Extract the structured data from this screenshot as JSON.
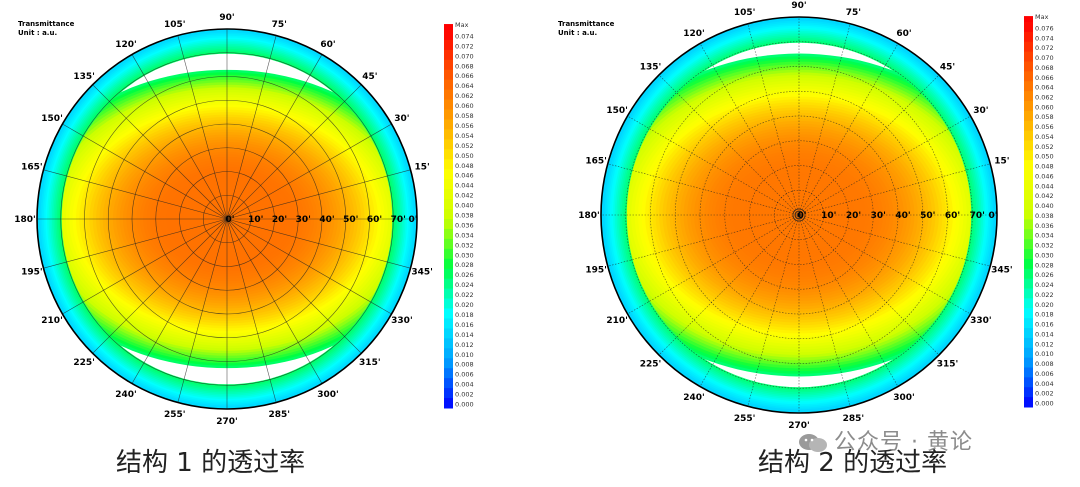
{
  "chart_data": [
    {
      "type": "heatmap",
      "projection": "polar",
      "title": "Transmittance",
      "unit": "Unit : a.u.",
      "caption": "结构 1 的透过率",
      "legend": {
        "max_label": "Max",
        "ticks": [
          "0.074",
          "0.072",
          "0.070",
          "0.068",
          "0.066",
          "0.064",
          "0.062",
          "0.060",
          "0.058",
          "0.056",
          "0.054",
          "0.052",
          "0.050",
          "0.048",
          "0.046",
          "0.044",
          "0.042",
          "0.040",
          "0.038",
          "0.036",
          "0.034",
          "0.032",
          "0.030",
          "0.028",
          "0.026",
          "0.024",
          "0.022",
          "0.020",
          "0.018",
          "0.016",
          "0.014",
          "0.012",
          "0.010",
          "0.008",
          "0.006",
          "0.004",
          "0.002",
          "0.000"
        ],
        "colors": [
          "#0000ff",
          "#00a0ff",
          "#00ffff",
          "#00ff40",
          "#ccff00",
          "#ffff00",
          "#ffaa00",
          "#ff5a00",
          "#ff0000"
        ],
        "placement": "right"
      },
      "angle_labels": [
        "0'",
        "15'",
        "30'",
        "45'",
        "60'",
        "75'",
        "90'",
        "105'",
        "120'",
        "135'",
        "150'",
        "165'",
        "180'",
        "195'",
        "210'",
        "225'",
        "240'",
        "255'",
        "270'",
        "285'",
        "300'",
        "315'",
        "330'",
        "345'"
      ],
      "radial_labels": [
        "0'",
        "10'",
        "20'",
        "30'",
        "40'",
        "50'",
        "60'",
        "70'"
      ],
      "radial_range": [
        0,
        80
      ],
      "field": {
        "center_value": 0.062,
        "edge_value": 0.026,
        "plateau_deg": 30,
        "x_stretch": 1.35
      }
    },
    {
      "type": "heatmap",
      "projection": "polar",
      "title": "Transmittance",
      "unit": "Unit : a.u.",
      "caption": "结构 2 的透过率",
      "legend": {
        "max_label": "Max",
        "ticks": [
          "0.076",
          "0.074",
          "0.072",
          "0.070",
          "0.068",
          "0.066",
          "0.064",
          "0.062",
          "0.060",
          "0.058",
          "0.056",
          "0.054",
          "0.052",
          "0.050",
          "0.048",
          "0.046",
          "0.044",
          "0.042",
          "0.040",
          "0.038",
          "0.036",
          "0.034",
          "0.032",
          "0.030",
          "0.028",
          "0.026",
          "0.024",
          "0.022",
          "0.020",
          "0.018",
          "0.016",
          "0.014",
          "0.012",
          "0.010",
          "0.008",
          "0.006",
          "0.004",
          "0.002",
          "0.000"
        ],
        "colors": [
          "#0000ff",
          "#00a0ff",
          "#00ffff",
          "#00ff40",
          "#ccff00",
          "#ffff00",
          "#ffaa00",
          "#ff5a00",
          "#ff0000"
        ],
        "placement": "right"
      },
      "angle_labels": [
        "0'",
        "15'",
        "30'",
        "45'",
        "60'",
        "75'",
        "90'",
        "105'",
        "120'",
        "135'",
        "150'",
        "165'",
        "180'",
        "195'",
        "210'",
        "225'",
        "240'",
        "255'",
        "270'",
        "285'",
        "300'",
        "315'",
        "330'",
        "345'"
      ],
      "radial_labels": [
        "0'",
        "10'",
        "20'",
        "30'",
        "40'",
        "50'",
        "60'",
        "70'"
      ],
      "radial_range": [
        0,
        80
      ],
      "field": {
        "center_value": 0.063,
        "edge_value": 0.026,
        "plateau_deg": 30,
        "x_stretch": 1.3
      }
    }
  ],
  "watermark": "公众号 · 黄论"
}
